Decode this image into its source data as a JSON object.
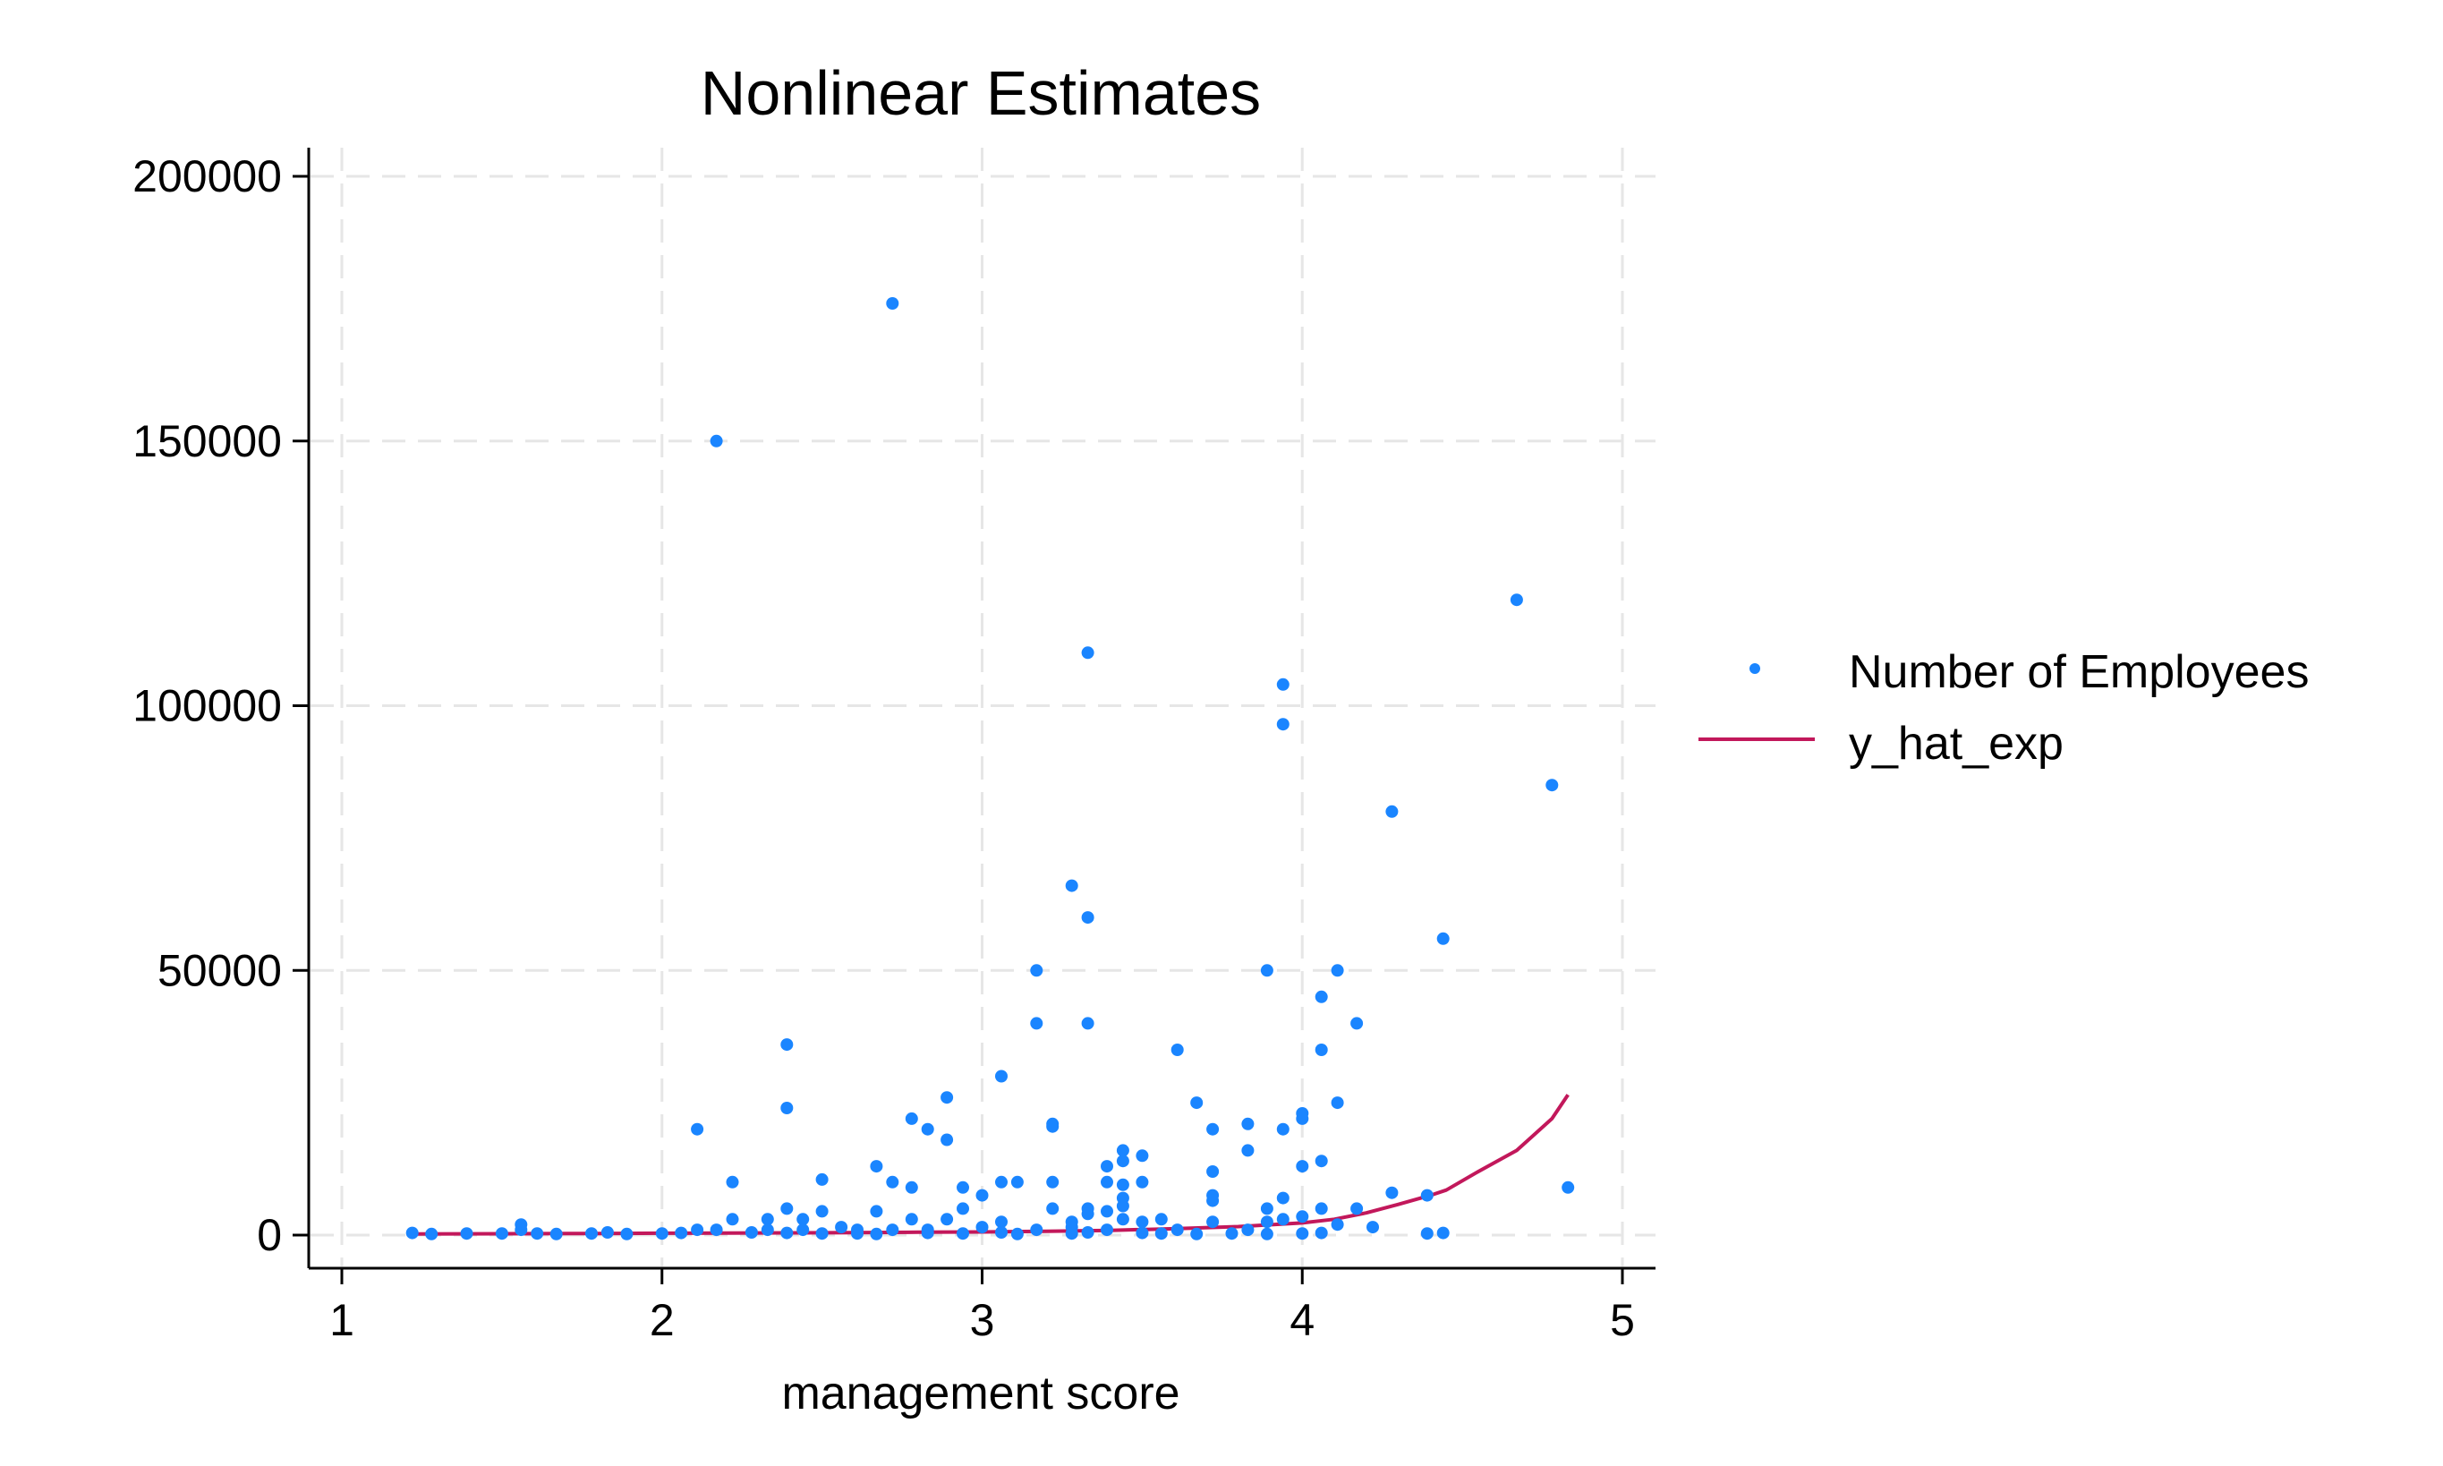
{
  "chart_data": {
    "type": "scatter",
    "title": "Nonlinear Estimates",
    "xlabel": "management score",
    "ylabel": "",
    "xlim": [
      1,
      5
    ],
    "ylim": [
      0,
      200000
    ],
    "x_ticks": [
      "1",
      "2",
      "3",
      "4",
      "5"
    ],
    "y_ticks": [
      "0",
      "50000",
      "100000",
      "150000",
      "200000"
    ],
    "grid": true,
    "legend_placement": "right",
    "series": [
      {
        "name": "Number of Employees",
        "type": "scatter",
        "color": "#1a85ff",
        "points": [
          [
            2.72,
            176000
          ],
          [
            2.17,
            150000
          ],
          [
            4.67,
            120000
          ],
          [
            3.33,
            110000
          ],
          [
            3.94,
            104000
          ],
          [
            3.94,
            96500
          ],
          [
            4.78,
            85000
          ],
          [
            4.28,
            80000
          ],
          [
            3.28,
            66000
          ],
          [
            3.33,
            60000
          ],
          [
            4.44,
            56000
          ],
          [
            3.17,
            50000
          ],
          [
            3.89,
            50000
          ],
          [
            4.11,
            50000
          ],
          [
            4.06,
            45000
          ],
          [
            3.17,
            40000
          ],
          [
            3.33,
            40000
          ],
          [
            4.17,
            40000
          ],
          [
            2.39,
            36000
          ],
          [
            3.61,
            35000
          ],
          [
            4.06,
            35000
          ],
          [
            3.06,
            30000
          ],
          [
            2.89,
            26000
          ],
          [
            3.67,
            25000
          ],
          [
            4.11,
            25000
          ],
          [
            2.39,
            24000
          ],
          [
            4.0,
            23000
          ],
          [
            4.0,
            22000
          ],
          [
            2.78,
            22000
          ],
          [
            3.22,
            21000
          ],
          [
            3.83,
            21000
          ],
          [
            2.11,
            20000
          ],
          [
            3.22,
            20500
          ],
          [
            2.83,
            20000
          ],
          [
            3.72,
            20000
          ],
          [
            3.94,
            20000
          ],
          [
            2.89,
            18000
          ],
          [
            3.83,
            16000
          ],
          [
            3.44,
            16000
          ],
          [
            3.5,
            15000
          ],
          [
            3.44,
            14000
          ],
          [
            4.06,
            14000
          ],
          [
            4.0,
            13000
          ],
          [
            3.39,
            13000
          ],
          [
            2.67,
            13000
          ],
          [
            3.72,
            12000
          ],
          [
            2.5,
            10500
          ],
          [
            2.22,
            10000
          ],
          [
            2.72,
            10000
          ],
          [
            3.06,
            10000
          ],
          [
            3.11,
            10000
          ],
          [
            3.22,
            10000
          ],
          [
            3.39,
            10000
          ],
          [
            3.44,
            9500
          ],
          [
            3.5,
            10000
          ],
          [
            2.78,
            9000
          ],
          [
            2.94,
            9000
          ],
          [
            4.83,
            9000
          ],
          [
            4.28,
            8000
          ],
          [
            3.0,
            7500
          ],
          [
            3.72,
            7500
          ],
          [
            3.44,
            7000
          ],
          [
            4.39,
            7500
          ],
          [
            3.94,
            7000
          ],
          [
            3.72,
            6500
          ],
          [
            3.44,
            5500
          ],
          [
            2.39,
            5000
          ],
          [
            2.5,
            4500
          ],
          [
            2.67,
            4500
          ],
          [
            2.94,
            5000
          ],
          [
            3.22,
            5000
          ],
          [
            3.33,
            5000
          ],
          [
            3.39,
            4500
          ],
          [
            3.89,
            5000
          ],
          [
            4.06,
            5000
          ],
          [
            4.17,
            5000
          ],
          [
            3.33,
            4000
          ],
          [
            4.0,
            3500
          ],
          [
            2.22,
            3000
          ],
          [
            2.33,
            3000
          ],
          [
            2.44,
            3000
          ],
          [
            2.78,
            3000
          ],
          [
            2.89,
            3000
          ],
          [
            3.06,
            2500
          ],
          [
            3.28,
            2500
          ],
          [
            3.44,
            3000
          ],
          [
            3.5,
            2500
          ],
          [
            3.56,
            3000
          ],
          [
            3.72,
            2500
          ],
          [
            3.89,
            2500
          ],
          [
            3.94,
            3000
          ],
          [
            4.11,
            2000
          ],
          [
            4.22,
            1500
          ],
          [
            1.56,
            2000
          ],
          [
            1.56,
            1000
          ],
          [
            2.11,
            1000
          ],
          [
            2.17,
            1000
          ],
          [
            2.33,
            1000
          ],
          [
            2.44,
            1000
          ],
          [
            2.56,
            1500
          ],
          [
            2.61,
            1000
          ],
          [
            2.72,
            1000
          ],
          [
            2.83,
            1000
          ],
          [
            3.0,
            1500
          ],
          [
            3.17,
            1000
          ],
          [
            3.28,
            1500
          ],
          [
            3.39,
            1000
          ],
          [
            3.61,
            1000
          ],
          [
            3.83,
            1000
          ],
          [
            1.22,
            400
          ],
          [
            1.28,
            200
          ],
          [
            1.39,
            300
          ],
          [
            1.5,
            300
          ],
          [
            1.61,
            300
          ],
          [
            1.67,
            200
          ],
          [
            1.78,
            300
          ],
          [
            1.83,
            500
          ],
          [
            1.89,
            200
          ],
          [
            2.0,
            300
          ],
          [
            2.06,
            400
          ],
          [
            2.28,
            500
          ],
          [
            2.39,
            400
          ],
          [
            2.5,
            300
          ],
          [
            2.61,
            300
          ],
          [
            2.67,
            200
          ],
          [
            2.83,
            400
          ],
          [
            2.94,
            300
          ],
          [
            3.06,
            500
          ],
          [
            3.11,
            200
          ],
          [
            3.28,
            300
          ],
          [
            3.33,
            500
          ],
          [
            3.5,
            400
          ],
          [
            3.56,
            300
          ],
          [
            3.67,
            200
          ],
          [
            3.78,
            300
          ],
          [
            3.89,
            200
          ],
          [
            4.0,
            300
          ],
          [
            4.06,
            400
          ],
          [
            4.39,
            300
          ],
          [
            4.44,
            400
          ]
        ]
      },
      {
        "name": "y_hat_exp",
        "type": "line",
        "color": "#c2185b",
        "points": [
          [
            1.22,
            220
          ],
          [
            1.5,
            260
          ],
          [
            1.8,
            310
          ],
          [
            2.0,
            350
          ],
          [
            2.2,
            380
          ],
          [
            2.4,
            420
          ],
          [
            2.6,
            480
          ],
          [
            2.8,
            540
          ],
          [
            3.0,
            600
          ],
          [
            3.2,
            720
          ],
          [
            3.4,
            900
          ],
          [
            3.6,
            1200
          ],
          [
            3.8,
            1600
          ],
          [
            4.0,
            2300
          ],
          [
            4.1,
            3000
          ],
          [
            4.2,
            4200
          ],
          [
            4.3,
            5800
          ],
          [
            4.4,
            7500
          ],
          [
            4.45,
            8500
          ],
          [
            4.55,
            12000
          ],
          [
            4.67,
            16000
          ],
          [
            4.78,
            22000
          ],
          [
            4.83,
            26500
          ]
        ]
      }
    ]
  }
}
